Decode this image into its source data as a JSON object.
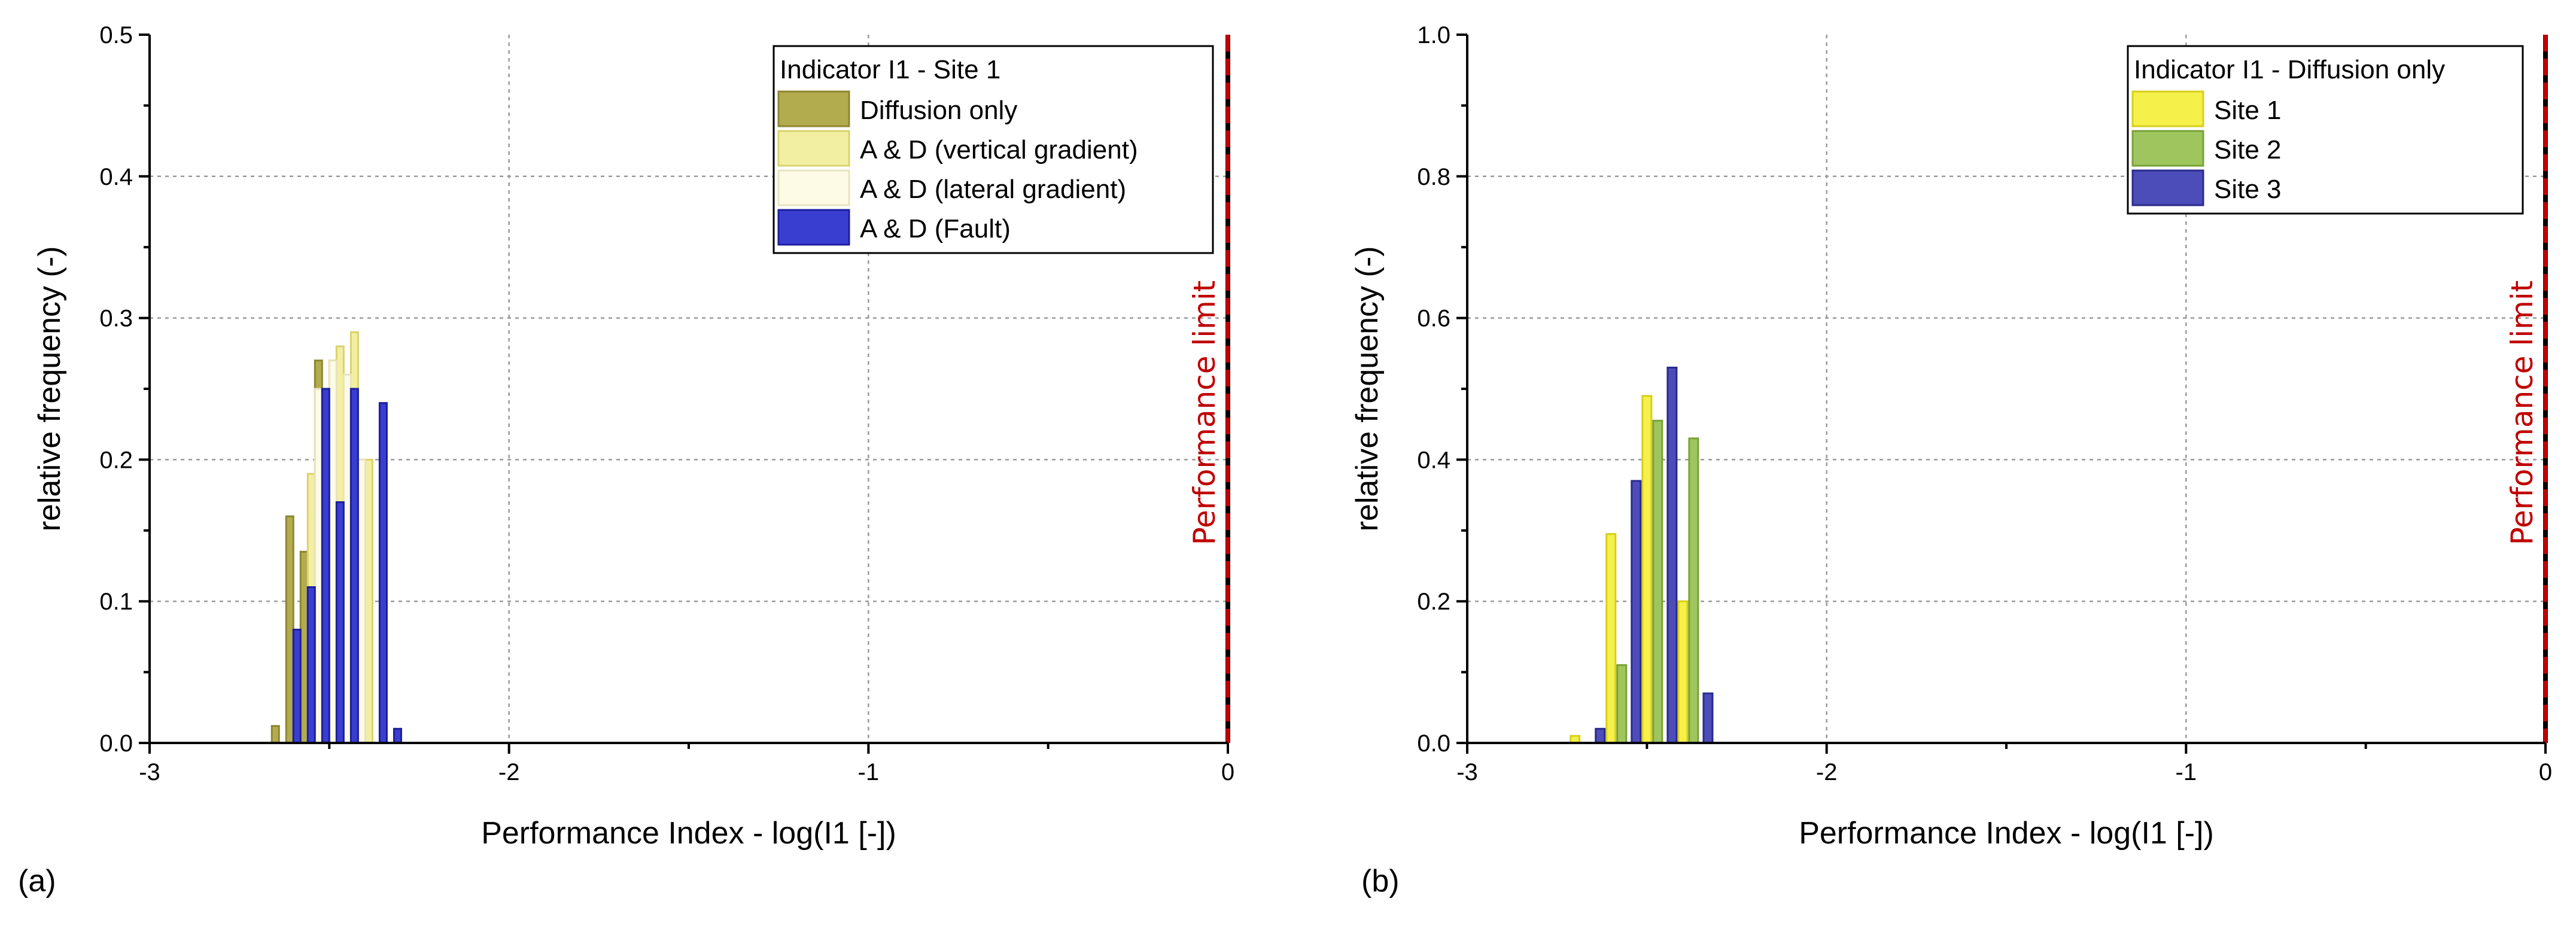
{
  "chart_data": [
    {
      "type": "bar",
      "panel_label": "(a)",
      "xlabel": "Performance Index - log(I1 [-])",
      "ylabel": "relative frequency (-)",
      "xlim": [
        -3,
        0
      ],
      "ylim": [
        0,
        0.5
      ],
      "xticks": [
        "-3",
        "-2",
        "-1",
        "0"
      ],
      "yticks": [
        "0.0",
        "0.1",
        "0.2",
        "0.3",
        "0.4",
        "0.5"
      ],
      "grid": true,
      "bin_width": 0.02,
      "legend": {
        "title": "Indicator I1 - Site 1",
        "position": "top-right"
      },
      "limit": {
        "x": 0,
        "label": "Performance limit"
      },
      "series": [
        {
          "name": "Diffusion only",
          "color": "#b3ac4e",
          "border": "#8d8632",
          "x": [
            -2.65,
            -2.61,
            -2.57,
            -2.53,
            -2.49,
            -2.45,
            -2.41
          ],
          "values": [
            0.012,
            0.16,
            0.135,
            0.27,
            0.27,
            0.22,
            0.2
          ]
        },
        {
          "name": "A & D (vertical gradient)",
          "color": "#f3efa2",
          "border": "#d9d36e",
          "x": [
            -2.55,
            -2.51,
            -2.47,
            -2.43,
            -2.39
          ],
          "values": [
            0.19,
            0.23,
            0.28,
            0.29,
            0.2
          ]
        },
        {
          "name": "A & D (lateral gradient)",
          "color": "#fdfbe6",
          "border": "#e8e4bf",
          "x": [
            -2.53,
            -2.49,
            -2.45,
            -2.41
          ],
          "values": [
            0.25,
            0.27,
            0.26,
            0.2
          ]
        },
        {
          "name": "A & D (Fault)",
          "color": "#3a3ed0",
          "border": "#1c1f9c",
          "x": [
            -2.59,
            -2.55,
            -2.51,
            -2.47,
            -2.43,
            -2.39,
            -2.35,
            -2.31
          ],
          "values": [
            0.08,
            0.11,
            0.25,
            0.17,
            0.25,
            0.0,
            0.24,
            0.01
          ]
        }
      ]
    },
    {
      "type": "bar",
      "panel_label": "(b)",
      "xlabel": "Performance Index - log(I1 [-])",
      "ylabel": "relative frequency (-)",
      "xlim": [
        -3,
        0
      ],
      "ylim": [
        0,
        1.0
      ],
      "xticks": [
        "-3",
        "-2",
        "-1",
        "0"
      ],
      "yticks": [
        "0.0",
        "0.2",
        "0.4",
        "0.6",
        "0.8",
        "1.0"
      ],
      "grid": true,
      "bin_width": 0.025,
      "legend": {
        "title": "Indicator I1 - Diffusion only",
        "position": "top-right"
      },
      "limit": {
        "x": 0,
        "label": "Performance limit"
      },
      "series": [
        {
          "name": "Site 1",
          "color": "#f6f04a",
          "border": "#d6cf1c",
          "x": [
            -2.7,
            -2.6,
            -2.5,
            -2.4
          ],
          "values": [
            0.01,
            0.295,
            0.49,
            0.2
          ]
        },
        {
          "name": "Site 2",
          "color": "#9fc65e",
          "border": "#78a238",
          "x": [
            -2.57,
            -2.47,
            -2.37
          ],
          "values": [
            0.11,
            0.455,
            0.43
          ]
        },
        {
          "name": "Site 3",
          "color": "#4c4db8",
          "border": "#2a2b8c",
          "x": [
            -2.63,
            -2.53,
            -2.43,
            -2.33
          ],
          "values": [
            0.02,
            0.37,
            0.53,
            0.07
          ]
        }
      ]
    }
  ]
}
